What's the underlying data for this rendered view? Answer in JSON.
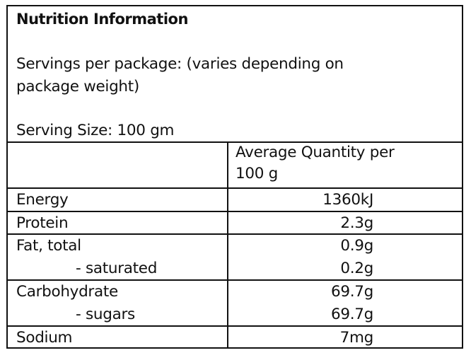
{
  "title": "Nutrition Information",
  "servings_per_package": "Servings per package: (varies depending on",
  "servings_per_package_cont": "package weight)",
  "serving_size": "Serving Size: 100 gm",
  "column_header_line1": "Average Quantity per",
  "column_header_line2": "100 g",
  "rows": [
    {
      "label": "Energy",
      "value": "1360kJ"
    },
    {
      "label": "Protein",
      "value": "2.3g"
    },
    {
      "label": "Fat, total",
      "value": "0.9g",
      "sub_label": "- saturated",
      "sub_value": "0.2g"
    },
    {
      "label": "Carbohydrate",
      "value": "69.7g",
      "sub_label": "- sugars",
      "sub_value": "69.7g"
    },
    {
      "label": "Sodium",
      "value": "7mg"
    }
  ]
}
